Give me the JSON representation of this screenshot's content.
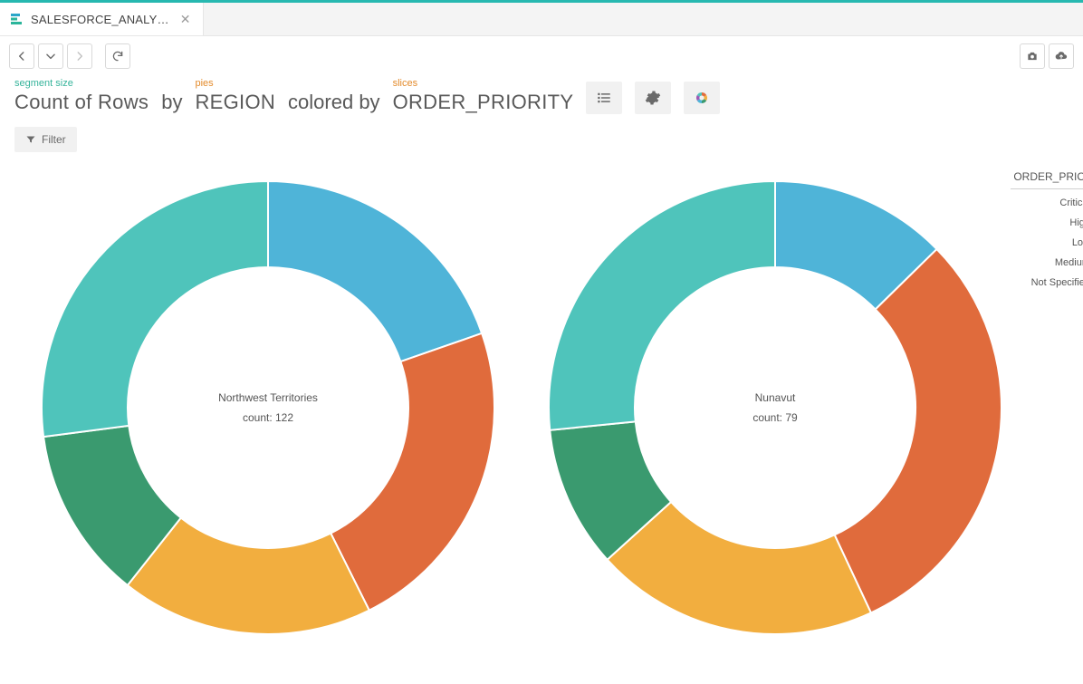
{
  "tab": {
    "title": "SALESFORCE_ANALY…",
    "icon_colors": {
      "top": "#2aa6c9",
      "mid": "#2bb59b",
      "bot": "#2bb59b"
    }
  },
  "toolbar": {
    "icons": [
      "back",
      "dropdown",
      "forward",
      "refresh",
      "camera",
      "upload-cloud"
    ]
  },
  "query": {
    "segment_size_label": "segment size",
    "segment_size_value": "Count of Rows",
    "by_text": "by",
    "pies_label": "pies",
    "pies_value": "REGION",
    "colored_by_text": "colored by",
    "slices_label": "slices",
    "slices_value": "ORDER_PRIORITY",
    "icons": [
      "list",
      "gear",
      "color-wheel"
    ]
  },
  "filter": {
    "label": "Filter"
  },
  "legend": {
    "title": "ORDER_PRIORITY",
    "items": [
      {
        "label": "Critical",
        "color": "#4fb4d8"
      },
      {
        "label": "High",
        "color": "#e06b3c"
      },
      {
        "label": "Low",
        "color": "#f2ae3f"
      },
      {
        "label": "Medium",
        "color": "#3a9a6f"
      },
      {
        "label": "Not Specified",
        "color": "#4fc4bb"
      }
    ]
  },
  "charts": {
    "type": "donut-multiples",
    "inner_radius_ratio": 0.62,
    "stroke": {
      "color": "#ffffff",
      "width": 2
    },
    "center_label_fontsize": 12,
    "background_color": "#ffffff",
    "pies": [
      {
        "title": "Northwest Territories",
        "count_label": "count: 122",
        "total": 122,
        "slices": [
          {
            "category": "Critical",
            "value": 24,
            "color": "#4fb4d8"
          },
          {
            "category": "High",
            "value": 28,
            "color": "#e06b3c"
          },
          {
            "category": "Low",
            "value": 22,
            "color": "#f2ae3f"
          },
          {
            "category": "Medium",
            "value": 15,
            "color": "#3a9a6f"
          },
          {
            "category": "Not Specified",
            "value": 33,
            "color": "#4fc4bb"
          }
        ]
      },
      {
        "title": "Nunavut",
        "count_label": "count: 79",
        "total": 79,
        "slices": [
          {
            "category": "Critical",
            "value": 10,
            "color": "#4fb4d8"
          },
          {
            "category": "High",
            "value": 24,
            "color": "#e06b3c"
          },
          {
            "category": "Low",
            "value": 16,
            "color": "#f2ae3f"
          },
          {
            "category": "Medium",
            "value": 8,
            "color": "#3a9a6f"
          },
          {
            "category": "Not Specified",
            "value": 21,
            "color": "#4fc4bb"
          }
        ]
      }
    ]
  }
}
